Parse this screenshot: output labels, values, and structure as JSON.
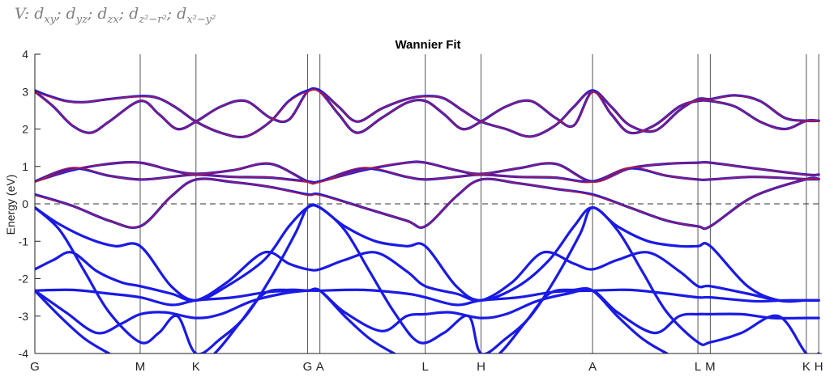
{
  "header": {
    "formula_prefix": "V:",
    "orbitals": [
      {
        "base": "d",
        "sub": "xy"
      },
      {
        "base": "d",
        "sub": "yz"
      },
      {
        "base": "d",
        "sub": "zx"
      },
      {
        "base": "d",
        "sub": "z²−r²"
      },
      {
        "base": "d",
        "sub": "x²−y²"
      }
    ],
    "separator": ";"
  },
  "chart_data": {
    "type": "line",
    "title": "Wannier Fit",
    "xlabel": "",
    "ylabel": "Energy (eV)",
    "ylim": [
      -4,
      4
    ],
    "yticks": [
      -4,
      -3,
      -2,
      -1,
      0,
      1,
      2,
      3,
      4
    ],
    "fermi_level": 0,
    "xlim": [
      0,
      12.7
    ],
    "kpoints": [
      {
        "label": "G",
        "x": 0
      },
      {
        "label": "M",
        "x": 1.7
      },
      {
        "label": "K",
        "x": 2.6
      },
      {
        "label": "G",
        "x": 4.4
      },
      {
        "label": "A",
        "x": 4.6
      },
      {
        "label": "L",
        "x": 6.3
      },
      {
        "label": "H",
        "x": 7.2
      },
      {
        "label": "A",
        "x": 9.0
      },
      {
        "label": "L",
        "x": 10.7
      },
      {
        "label": "M",
        "x": 10.9
      },
      {
        "label": "K",
        "x": 12.45
      },
      {
        "label": "H",
        "x": 12.65
      }
    ],
    "series_colors": {
      "dft": "#1a1ae6",
      "wannier": "#cc1a26"
    },
    "series": [
      {
        "kind": "dft",
        "x": [
          0,
          0.2,
          0.5,
          0.8,
          1.2,
          1.7,
          2.0,
          2.3,
          2.6,
          3.0,
          3.4,
          3.8,
          4.1,
          4.4,
          4.6,
          4.9,
          5.2,
          5.6,
          6.0,
          6.3,
          6.6,
          6.9,
          7.2,
          7.6,
          8.0,
          8.4,
          8.7,
          9.0,
          9.3,
          9.6,
          10.0,
          10.4,
          10.7,
          10.9,
          11.3,
          11.7,
          12.1,
          12.45,
          12.65
        ],
        "y": [
          3.03,
          2.9,
          2.75,
          2.72,
          2.8,
          2.88,
          2.82,
          2.55,
          2.2,
          1.9,
          1.8,
          2.2,
          2.75,
          3.03,
          3.03,
          2.6,
          2.2,
          2.55,
          2.8,
          2.88,
          2.82,
          2.5,
          2.2,
          2.0,
          1.8,
          2.1,
          2.6,
          3.03,
          2.6,
          2.1,
          1.95,
          2.5,
          2.8,
          2.8,
          2.9,
          2.75,
          2.3,
          2.22,
          2.22
        ]
      },
      {
        "kind": "dft",
        "x": [
          0,
          0.3,
          0.6,
          0.9,
          1.2,
          1.7,
          2.0,
          2.3,
          2.6,
          3.0,
          3.4,
          3.8,
          4.1,
          4.4,
          4.6,
          4.9,
          5.2,
          5.6,
          6.0,
          6.3,
          6.6,
          6.9,
          7.2,
          7.6,
          8.0,
          8.4,
          8.7,
          9.0,
          9.3,
          9.6,
          10.0,
          10.4,
          10.7,
          10.9,
          11.3,
          11.7,
          12.1,
          12.45,
          12.65
        ],
        "y": [
          3.0,
          2.6,
          2.1,
          1.9,
          2.2,
          2.75,
          2.4,
          2.0,
          2.2,
          2.6,
          2.75,
          2.3,
          2.25,
          3.0,
          3.0,
          2.4,
          1.9,
          2.3,
          2.7,
          2.75,
          2.4,
          2.0,
          2.2,
          2.6,
          2.75,
          2.3,
          2.1,
          3.0,
          2.4,
          1.9,
          2.1,
          2.6,
          2.75,
          2.75,
          2.6,
          2.2,
          2.0,
          2.22,
          2.22
        ]
      },
      {
        "kind": "dft",
        "x": [
          0,
          0.6,
          1.2,
          1.7,
          2.2,
          2.6,
          3.2,
          3.8,
          4.4,
          4.6,
          5.3,
          6.0,
          6.3,
          6.8,
          7.2,
          7.8,
          8.4,
          9.0,
          9.6,
          10.2,
          10.7,
          10.9,
          11.6,
          12.45,
          12.65
        ],
        "y": [
          0.6,
          0.9,
          1.07,
          1.1,
          0.9,
          0.8,
          0.9,
          1.07,
          0.6,
          0.6,
          0.9,
          1.1,
          1.1,
          0.9,
          0.8,
          0.95,
          1.07,
          0.6,
          0.95,
          1.07,
          1.1,
          1.1,
          0.95,
          0.78,
          0.78
        ]
      },
      {
        "kind": "dft",
        "x": [
          0,
          0.6,
          1.2,
          1.7,
          2.2,
          2.6,
          3.2,
          3.8,
          4.4,
          4.6,
          5.3,
          6.0,
          6.3,
          6.8,
          7.2,
          7.8,
          8.4,
          9.0,
          9.6,
          10.2,
          10.7,
          10.9,
          11.6,
          12.45,
          12.65
        ],
        "y": [
          0.6,
          0.95,
          0.75,
          0.65,
          0.72,
          0.78,
          0.72,
          0.7,
          0.6,
          0.6,
          0.95,
          0.72,
          0.65,
          0.72,
          0.78,
          0.72,
          0.7,
          0.6,
          0.95,
          0.75,
          0.65,
          0.65,
          0.72,
          0.66,
          0.66
        ]
      },
      {
        "kind": "dft",
        "x": [
          0,
          0.6,
          1.2,
          1.7,
          2.2,
          2.6,
          3.2,
          3.8,
          4.4,
          4.6,
          5.3,
          6.0,
          6.3,
          6.8,
          7.2,
          7.8,
          8.4,
          9.0,
          9.6,
          10.2,
          10.7,
          10.9,
          11.6,
          12.45,
          12.65
        ],
        "y": [
          0.25,
          -0.05,
          -0.45,
          -0.6,
          0.2,
          0.65,
          0.58,
          0.45,
          0.25,
          0.25,
          -0.1,
          -0.45,
          -0.6,
          0.2,
          0.65,
          0.55,
          0.4,
          0.25,
          -0.1,
          -0.45,
          -0.6,
          -0.6,
          0.2,
          0.66,
          0.66
        ]
      },
      {
        "kind": "dft",
        "x": [
          0,
          0.4,
          0.9,
          1.3,
          1.7,
          2.2,
          2.6,
          3.1,
          3.7,
          4.1,
          4.4,
          4.6,
          5.0,
          5.5,
          6.0,
          6.3,
          6.8,
          7.2,
          7.8,
          8.3,
          8.7,
          9.0,
          9.4,
          9.9,
          10.4,
          10.7,
          10.9,
          11.5,
          12.0,
          12.45,
          12.65
        ],
        "y": [
          -0.1,
          -0.55,
          -0.95,
          -1.13,
          -1.13,
          -2.2,
          -2.58,
          -2.2,
          -1.5,
          -0.6,
          -0.1,
          -0.1,
          -0.6,
          -1.0,
          -1.13,
          -1.13,
          -2.2,
          -2.58,
          -2.2,
          -1.5,
          -0.6,
          -0.1,
          -0.6,
          -1.0,
          -1.13,
          -1.13,
          -1.13,
          -2.2,
          -2.58,
          -2.58,
          -2.58
        ]
      },
      {
        "kind": "dft",
        "x": [
          0,
          0.3,
          0.6,
          1.0,
          1.4,
          1.7,
          2.2,
          2.6,
          3.1,
          3.7,
          4.1,
          4.4,
          4.6,
          5.0,
          5.5,
          6.0,
          6.3,
          6.8,
          7.2,
          7.7,
          8.2,
          8.7,
          9.0,
          9.4,
          9.9,
          10.4,
          10.7,
          10.9,
          11.5,
          12.0,
          12.45,
          12.65
        ],
        "y": [
          -1.75,
          -1.5,
          -1.3,
          -1.8,
          -2.1,
          -2.2,
          -2.4,
          -2.58,
          -2.1,
          -1.3,
          -1.6,
          -1.75,
          -1.75,
          -1.5,
          -1.3,
          -1.8,
          -2.2,
          -2.4,
          -2.58,
          -2.1,
          -1.3,
          -1.6,
          -1.75,
          -1.5,
          -1.3,
          -1.8,
          -2.2,
          -2.2,
          -2.4,
          -2.58,
          -2.58,
          -2.58
        ]
      },
      {
        "kind": "dft",
        "x": [
          0,
          0.6,
          1.2,
          1.7,
          2.2,
          2.6,
          3.2,
          3.8,
          4.4,
          4.6,
          5.3,
          6.0,
          6.3,
          6.8,
          7.2,
          7.8,
          8.4,
          9.0,
          9.6,
          10.2,
          10.7,
          10.9,
          11.6,
          12.1,
          12.45,
          12.65
        ],
        "y": [
          -2.32,
          -2.3,
          -2.4,
          -2.5,
          -2.7,
          -2.58,
          -2.5,
          -2.35,
          -2.32,
          -2.32,
          -2.3,
          -2.4,
          -2.5,
          -2.7,
          -2.58,
          -2.5,
          -2.35,
          -2.32,
          -2.3,
          -2.4,
          -2.5,
          -2.5,
          -2.6,
          -2.58,
          -2.58,
          -2.58
        ]
      },
      {
        "kind": "dft",
        "x": [
          0,
          0.5,
          1.0,
          1.4,
          1.7,
          2.1,
          2.6,
          3.0,
          3.5,
          4.0,
          4.4,
          4.6,
          5.0,
          5.6,
          6.0,
          6.3,
          6.7,
          7.2,
          7.6,
          8.1,
          8.6,
          9.0,
          9.4,
          10.0,
          10.4,
          10.7,
          10.9,
          11.4,
          11.9,
          12.45,
          12.65
        ],
        "y": [
          -2.32,
          -2.9,
          -3.45,
          -3.2,
          -2.95,
          -2.9,
          -3.05,
          -2.95,
          -2.6,
          -2.4,
          -2.32,
          -2.32,
          -2.9,
          -3.4,
          -3.0,
          -2.95,
          -2.9,
          -3.05,
          -2.95,
          -2.6,
          -2.4,
          -2.32,
          -2.9,
          -3.45,
          -3.0,
          -2.95,
          -2.95,
          -2.95,
          -3.05,
          -3.05,
          -3.05
        ]
      },
      {
        "kind": "dft",
        "x": [
          0,
          0.4,
          0.8,
          1.2,
          1.7,
          2.0,
          2.3,
          2.6,
          3.0,
          3.4,
          3.8,
          4.2,
          4.4,
          4.6,
          5.0,
          5.4,
          5.8,
          6.2,
          6.6,
          7.0,
          7.2,
          7.6,
          8.0,
          8.4,
          8.8,
          9.0,
          9.4,
          9.8,
          10.2,
          10.7,
          10.9,
          11.4,
          12.0,
          12.45,
          12.65
        ],
        "y": [
          -0.1,
          -0.7,
          -1.8,
          -2.9,
          -3.7,
          -3.45,
          -3.0,
          -4.0,
          -3.6,
          -3.0,
          -2.0,
          -0.8,
          -0.1,
          -0.1,
          -0.7,
          -1.8,
          -2.9,
          -3.7,
          -3.45,
          -3.0,
          -4.0,
          -3.6,
          -3.0,
          -2.0,
          -0.8,
          -0.1,
          -0.7,
          -1.8,
          -2.9,
          -3.7,
          -3.7,
          -3.45,
          -3.0,
          -4.0,
          -4.0
        ]
      },
      {
        "kind": "dft",
        "x": [
          0,
          0.4,
          0.8,
          1.2,
          1.7,
          2.1,
          2.5,
          2.9,
          3.3,
          3.7,
          4.1,
          4.4,
          4.6,
          5.0,
          5.4,
          5.8,
          6.3,
          6.7,
          7.1,
          7.5,
          7.9,
          8.3,
          8.7,
          9.0,
          9.4,
          9.8,
          10.2,
          10.7,
          10.9,
          11.4,
          12.0,
          12.45,
          12.65
        ],
        "y": [
          -2.32,
          -3.0,
          -3.6,
          -4.0,
          -4.4,
          -4.6,
          -4.4,
          -4.0,
          -3.2,
          -2.4,
          -2.3,
          -2.32,
          -2.32,
          -3.0,
          -3.6,
          -4.0,
          -4.4,
          -4.6,
          -4.4,
          -4.0,
          -3.2,
          -2.4,
          -2.3,
          -2.32,
          -3.0,
          -3.6,
          -4.0,
          -4.4,
          -4.4,
          -4.6,
          -4.4,
          -4.3,
          -4.3
        ]
      },
      {
        "kind": "wannier",
        "x": [
          0,
          0.2,
          0.5,
          0.8,
          1.2,
          1.7,
          2.0,
          2.3,
          2.6,
          3.0,
          3.4,
          3.8,
          4.1,
          4.4,
          4.6,
          4.9,
          5.2,
          5.6,
          6.0,
          6.3,
          6.6,
          6.9,
          7.2,
          7.6,
          8.0,
          8.4,
          8.7,
          9.0,
          9.3,
          9.6,
          10.0,
          10.4,
          10.7,
          10.9,
          11.3,
          11.7,
          12.1,
          12.45,
          12.65
        ],
        "y": [
          3.0,
          2.88,
          2.74,
          2.72,
          2.8,
          2.87,
          2.82,
          2.55,
          2.2,
          1.9,
          1.8,
          2.2,
          2.73,
          3.0,
          3.0,
          2.6,
          2.2,
          2.55,
          2.8,
          2.87,
          2.82,
          2.5,
          2.2,
          2.0,
          1.8,
          2.1,
          2.6,
          3.0,
          2.6,
          2.1,
          1.95,
          2.5,
          2.8,
          2.8,
          2.89,
          2.75,
          2.3,
          2.22,
          2.22
        ]
      },
      {
        "kind": "wannier",
        "x": [
          0,
          0.3,
          0.6,
          0.9,
          1.2,
          1.7,
          2.0,
          2.3,
          2.6,
          3.0,
          3.4,
          3.8,
          4.1,
          4.4,
          4.6,
          4.9,
          5.2,
          5.6,
          6.0,
          6.3,
          6.6,
          6.9,
          7.2,
          7.6,
          8.0,
          8.4,
          8.7,
          9.0,
          9.3,
          9.6,
          10.0,
          10.4,
          10.7,
          10.9,
          11.3,
          11.7,
          12.1,
          12.45,
          12.65
        ],
        "y": [
          2.98,
          2.6,
          2.1,
          1.9,
          2.2,
          2.75,
          2.4,
          2.0,
          2.2,
          2.6,
          2.75,
          2.3,
          2.25,
          2.98,
          2.98,
          2.4,
          1.9,
          2.3,
          2.7,
          2.75,
          2.4,
          2.0,
          2.2,
          2.6,
          2.75,
          2.3,
          2.1,
          2.98,
          2.4,
          1.9,
          2.1,
          2.6,
          2.75,
          2.75,
          2.6,
          2.2,
          2.0,
          2.22,
          2.22
        ]
      },
      {
        "kind": "wannier",
        "x": [
          0,
          0.6,
          1.2,
          1.7,
          2.2,
          2.6,
          3.2,
          3.8,
          4.4,
          4.6,
          5.3,
          6.0,
          6.3,
          6.8,
          7.2,
          7.8,
          8.4,
          9.0,
          9.6,
          10.2,
          10.7,
          10.9,
          11.6,
          12.45,
          12.65
        ],
        "y": [
          0.58,
          0.92,
          1.07,
          1.1,
          0.9,
          0.8,
          0.9,
          1.07,
          0.58,
          0.58,
          0.92,
          1.1,
          1.1,
          0.9,
          0.8,
          0.95,
          1.07,
          0.58,
          0.95,
          1.07,
          1.1,
          1.1,
          0.95,
          0.78,
          0.78
        ]
      },
      {
        "kind": "wannier",
        "x": [
          0,
          0.6,
          1.2,
          1.7,
          2.2,
          2.6,
          3.2,
          3.8,
          4.4,
          4.6,
          5.3,
          6.0,
          6.3,
          6.8,
          7.2,
          7.8,
          8.4,
          9.0,
          9.6,
          10.2,
          10.7,
          10.9,
          11.6,
          12.45,
          12.65
        ],
        "y": [
          0.58,
          0.97,
          0.75,
          0.65,
          0.72,
          0.78,
          0.72,
          0.7,
          0.58,
          0.58,
          0.97,
          0.72,
          0.65,
          0.72,
          0.78,
          0.72,
          0.7,
          0.58,
          0.97,
          0.75,
          0.65,
          0.65,
          0.72,
          0.66,
          0.66
        ]
      },
      {
        "kind": "wannier",
        "x": [
          0,
          0.6,
          1.2,
          1.7,
          2.2,
          2.6,
          3.2,
          3.8,
          4.4,
          4.6,
          5.3,
          6.0,
          6.3,
          6.8,
          7.2,
          7.8,
          8.4,
          9.0,
          9.6,
          10.2,
          10.7,
          10.9,
          11.6,
          12.45,
          12.65
        ],
        "y": [
          0.23,
          -0.05,
          -0.45,
          -0.6,
          0.2,
          0.65,
          0.58,
          0.45,
          0.23,
          0.23,
          -0.1,
          -0.45,
          -0.6,
          0.2,
          0.65,
          0.55,
          0.4,
          0.23,
          -0.1,
          -0.45,
          -0.6,
          -0.6,
          0.2,
          0.66,
          0.66
        ]
      }
    ]
  }
}
